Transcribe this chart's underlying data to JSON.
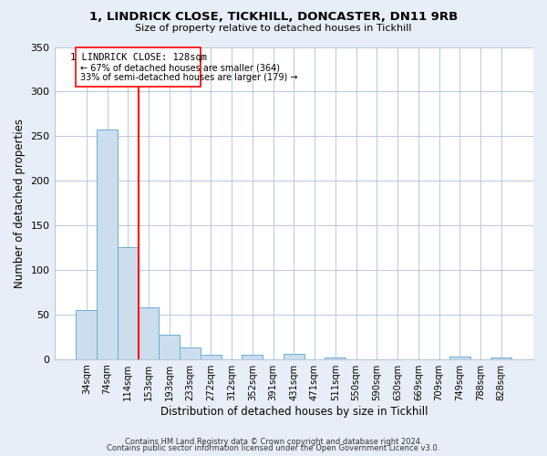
{
  "title": "1, LINDRICK CLOSE, TICKHILL, DONCASTER, DN11 9RB",
  "subtitle": "Size of property relative to detached houses in Tickhill",
  "xlabel": "Distribution of detached houses by size in Tickhill",
  "ylabel": "Number of detached properties",
  "bar_labels": [
    "34sqm",
    "74sqm",
    "114sqm",
    "153sqm",
    "193sqm",
    "233sqm",
    "272sqm",
    "312sqm",
    "352sqm",
    "391sqm",
    "431sqm",
    "471sqm",
    "511sqm",
    "550sqm",
    "590sqm",
    "630sqm",
    "669sqm",
    "709sqm",
    "749sqm",
    "788sqm",
    "828sqm"
  ],
  "bar_values": [
    55,
    257,
    126,
    58,
    27,
    13,
    5,
    0,
    5,
    0,
    6,
    0,
    2,
    0,
    0,
    0,
    0,
    0,
    3,
    0,
    2
  ],
  "bar_color": "#ccdded",
  "bar_edge_color": "#6aaed6",
  "ylim": [
    0,
    350
  ],
  "yticks": [
    0,
    50,
    100,
    150,
    200,
    250,
    300,
    350
  ],
  "red_line_index": 2,
  "annotation_title": "1 LINDRICK CLOSE: 128sqm",
  "annotation_line1": "← 67% of detached houses are smaller (364)",
  "annotation_line2": "33% of semi-detached houses are larger (179) →",
  "footer1": "Contains HM Land Registry data © Crown copyright and database right 2024.",
  "footer2": "Contains public sector information licensed under the Open Government Licence v3.0.",
  "bg_color": "#e8eef7",
  "plot_bg_color": "#ffffff",
  "grid_color": "#b8c8dc"
}
